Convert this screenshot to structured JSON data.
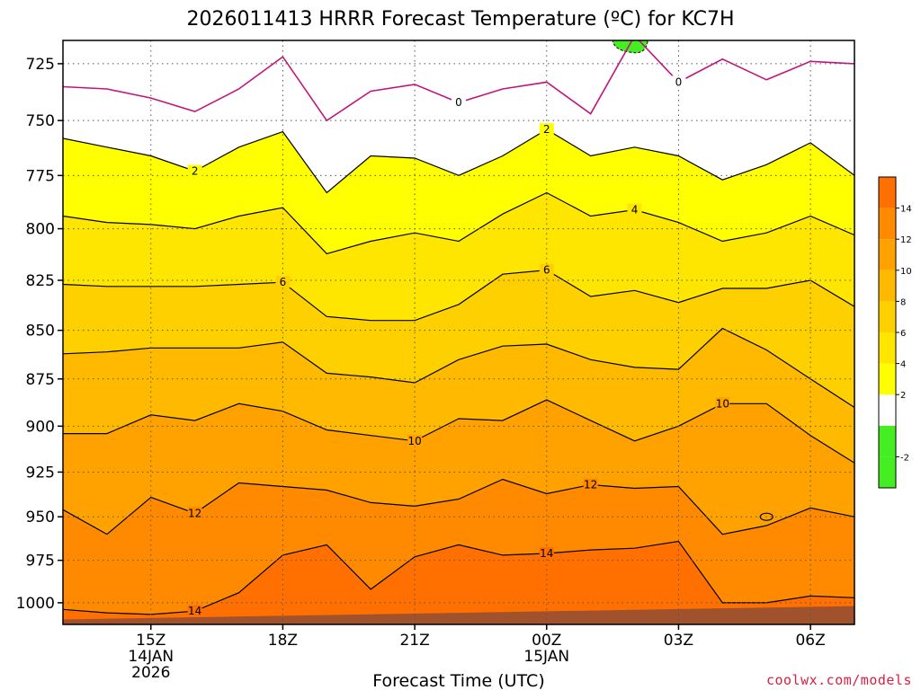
{
  "chart_data": {
    "type": "heatmap",
    "title": "2026011413 HRRR Forecast Temperature (ºC) for KC7H",
    "xlabel": "Forecast Time (UTC)",
    "ylabel": "",
    "y_ticks": [
      "725",
      "750",
      "775",
      "800",
      "825",
      "850",
      "875",
      "900",
      "925",
      "950",
      "975",
      "1000"
    ],
    "ylim": [
      1013,
      715
    ],
    "y_scale": "log",
    "x_range_hours": [
      13,
      31
    ],
    "x_ticks": [
      {
        "hour": 15,
        "lines": [
          "15Z",
          "14JAN",
          "2026"
        ]
      },
      {
        "hour": 18,
        "lines": [
          "18Z"
        ]
      },
      {
        "hour": 21,
        "lines": [
          "21Z"
        ]
      },
      {
        "hour": 24,
        "lines": [
          "00Z",
          "15JAN"
        ]
      },
      {
        "hour": 27,
        "lines": [
          "03Z"
        ]
      },
      {
        "hour": 30,
        "lines": [
          "06Z"
        ]
      }
    ],
    "colorbar": {
      "levels": [
        -4,
        -2,
        0,
        2,
        4,
        6,
        8,
        10,
        12,
        14,
        16
      ],
      "colors": [
        "#44ee22",
        "#44ee22",
        "#ffffff",
        "#ffff00",
        "#ffe600",
        "#ffd000",
        "#ffba00",
        "#ffa200",
        "#ff8a00",
        "#ff7000",
        "#ff5500"
      ],
      "tick_labels": [
        "-2",
        "2",
        "4",
        "6",
        "8",
        "10",
        "12",
        "14"
      ]
    },
    "contours": [
      {
        "level": 0,
        "label": "0",
        "hours": [
          13,
          14,
          15,
          16,
          17,
          18,
          19,
          20,
          21,
          22,
          23,
          24,
          25,
          26,
          27,
          28,
          29,
          30,
          31
        ],
        "pressure": [
          735,
          736,
          740,
          746,
          736,
          722,
          750,
          737,
          734,
          742,
          736,
          733,
          747,
          713,
          733,
          723,
          732,
          724,
          725
        ]
      },
      {
        "level": 2,
        "label": "2",
        "hours": [
          13,
          14,
          15,
          16,
          17,
          18,
          19,
          20,
          21,
          22,
          23,
          24,
          25,
          26,
          27,
          28,
          29,
          30,
          31
        ],
        "pressure": [
          758,
          762,
          766,
          773,
          762,
          755,
          783,
          766,
          767,
          775,
          766,
          754,
          766,
          762,
          766,
          777,
          770,
          760,
          775
        ]
      },
      {
        "level": 4,
        "label": "4",
        "hours": [
          13,
          14,
          15,
          16,
          17,
          18,
          19,
          20,
          21,
          22,
          23,
          24,
          25,
          26,
          27,
          28,
          29,
          30,
          31
        ],
        "pressure": [
          794,
          797,
          798,
          800,
          794,
          790,
          812,
          806,
          802,
          806,
          793,
          783,
          794,
          791,
          797,
          806,
          802,
          794,
          803
        ]
      },
      {
        "level": 6,
        "label": "6",
        "hours": [
          13,
          14,
          15,
          16,
          17,
          18,
          19,
          20,
          21,
          22,
          23,
          24,
          25,
          26,
          27,
          28,
          29,
          30,
          31
        ],
        "pressure": [
          827,
          828,
          828,
          828,
          827,
          826,
          843,
          845,
          845,
          837,
          822,
          820,
          833,
          830,
          836,
          829,
          829,
          825,
          838
        ]
      },
      {
        "level": 8,
        "label": "",
        "hours": [
          13,
          14,
          15,
          16,
          17,
          18,
          19,
          20,
          21,
          22,
          23,
          24,
          25,
          26,
          27,
          28,
          29,
          30,
          31
        ],
        "pressure": [
          862,
          861,
          859,
          859,
          859,
          856,
          872,
          874,
          877,
          865,
          858,
          857,
          865,
          869,
          870,
          849,
          860,
          875,
          890
        ]
      },
      {
        "level": 10,
        "label": "10",
        "hours": [
          13,
          14,
          15,
          16,
          17,
          18,
          19,
          20,
          21,
          22,
          23,
          24,
          25,
          26,
          27,
          28,
          29,
          30,
          31
        ],
        "pressure": [
          904,
          904,
          894,
          897,
          888,
          892,
          902,
          905,
          908,
          896,
          897,
          886,
          897,
          908,
          900,
          888,
          888,
          905,
          920
        ]
      },
      {
        "level": 12,
        "label": "12",
        "hours": [
          13,
          14,
          15,
          16,
          17,
          18,
          19,
          20,
          21,
          22,
          23,
          24,
          25,
          26,
          27,
          28,
          29,
          30,
          31
        ],
        "pressure": [
          946,
          960,
          939,
          948,
          931,
          933,
          935,
          942,
          944,
          940,
          929,
          937,
          932,
          934,
          933,
          960,
          955,
          945,
          950
        ]
      },
      {
        "level": 14,
        "label": "14",
        "hours": [
          13,
          14,
          15,
          16,
          17,
          18,
          19,
          20,
          21,
          22,
          23,
          24,
          25,
          26,
          27,
          28,
          29,
          30,
          31
        ],
        "pressure": [
          1004,
          1006,
          1007,
          1005,
          994,
          972,
          966,
          992,
          973,
          966,
          972,
          971,
          969,
          968,
          964,
          1000,
          1000,
          996,
          997
        ]
      }
    ],
    "below_freezing_patch": {
      "level": -2,
      "hours": [
        25.5,
        26.3
      ],
      "pressure_top": 715,
      "pressure_bottom": 720
    },
    "terrain": {
      "color": "#a0522d",
      "hours": [
        13,
        31
      ],
      "pressure": [
        1010,
        1002
      ]
    }
  },
  "credit": "coolwx.com/models"
}
